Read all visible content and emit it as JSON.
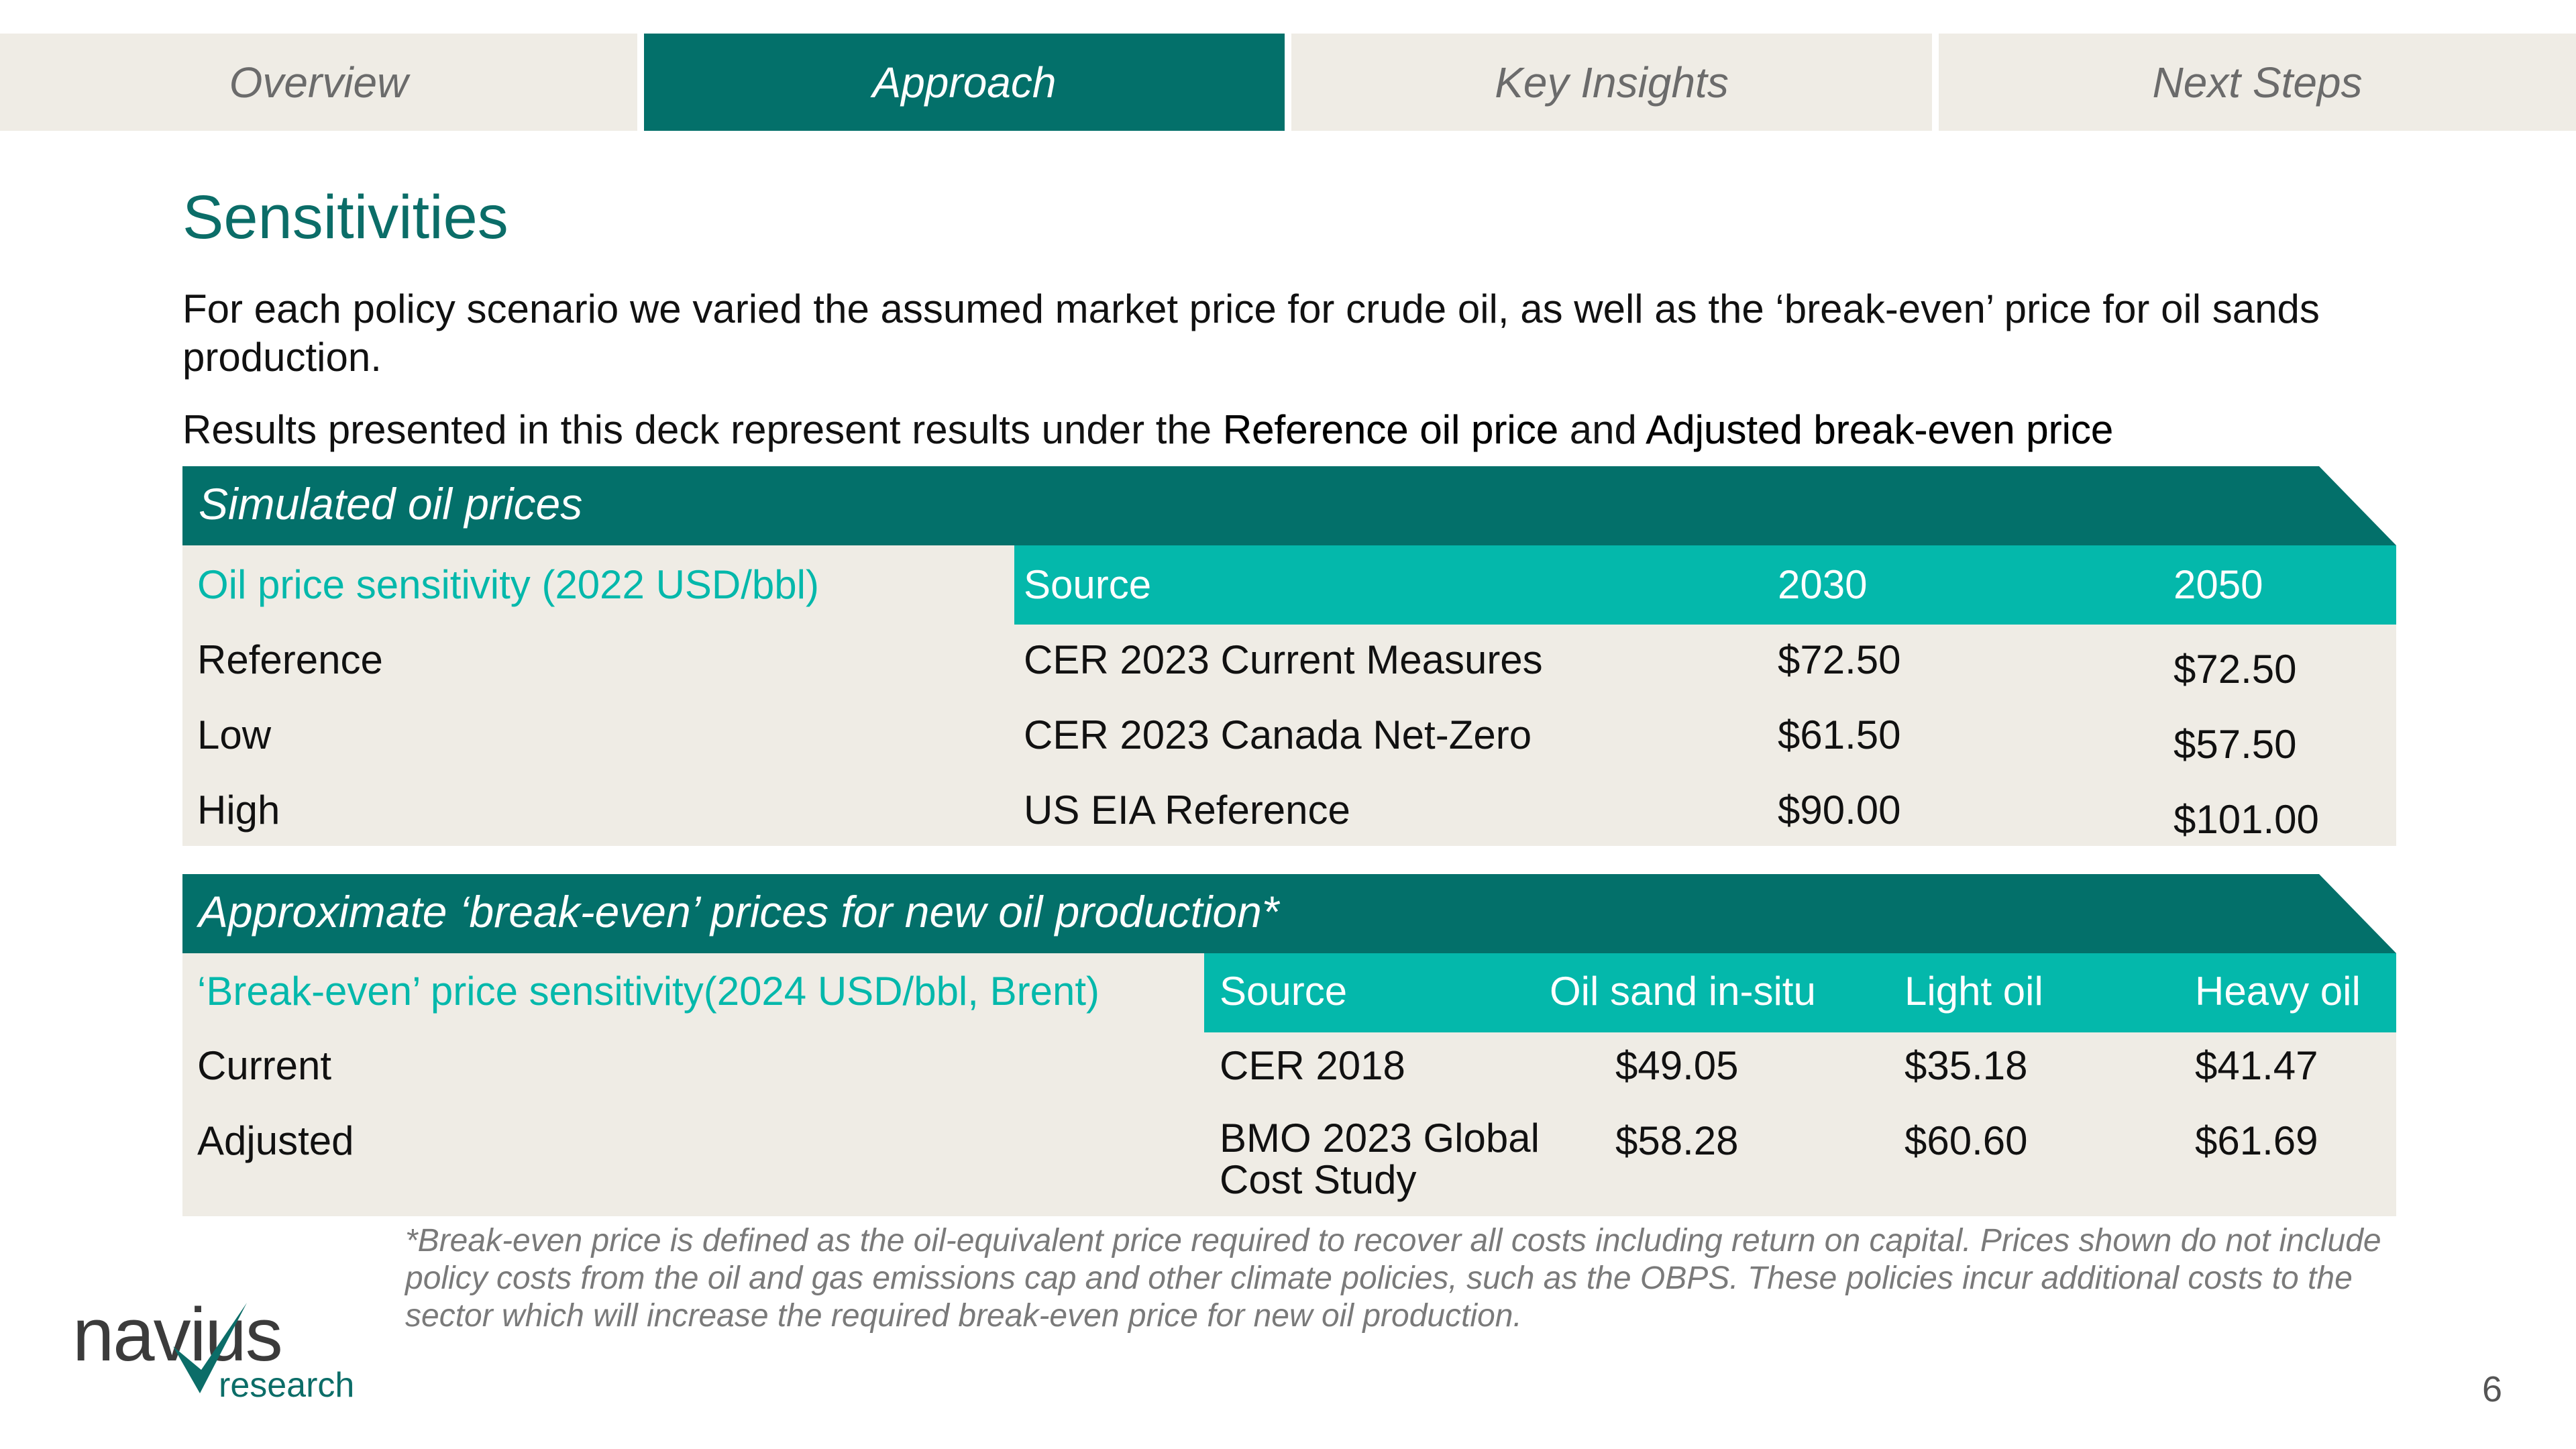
{
  "tabs": [
    {
      "label": "Overview",
      "active": false
    },
    {
      "label": "Approach",
      "active": true
    },
    {
      "label": "Key Insights",
      "active": false
    },
    {
      "label": "Next Steps",
      "active": false
    }
  ],
  "title": "Sensitivities",
  "intro": "For each policy scenario we varied the assumed market price for crude oil, as well as the ‘break-even’ price for oil sands production.",
  "results": {
    "prefix": "Results presented in this deck represent results under the ",
    "bold1": "Reference oil price",
    "mid": " and ",
    "bold2": "Adjusted break-even price"
  },
  "oil_prices": {
    "title": "Simulated oil prices",
    "columns": [
      "Oil price sensitivity (2022 USD/bbl)",
      "Source",
      "2030",
      "2050"
    ],
    "rows": [
      [
        "Reference",
        "CER 2023 Current Measures",
        "$72.50",
        "$72.50"
      ],
      [
        "Low",
        "CER 2023 Canada Net-Zero",
        "$61.50",
        "$57.50"
      ],
      [
        "High",
        "US EIA Reference",
        "$90.00",
        "$101.00"
      ]
    ]
  },
  "breakeven": {
    "title": "Approximate ‘break-even’ prices for new oil production*",
    "columns": [
      "‘Break-even’ price sensitivity(2024 USD/bbl, Brent)",
      "Source",
      "Oil sand in-situ",
      "Light oil",
      "Heavy oil"
    ],
    "rows": [
      [
        "Current",
        "CER 2018",
        "$49.05",
        "$35.18",
        "$41.47"
      ],
      [
        "Adjusted",
        "BMO 2023 Global Cost Study",
        "$58.28",
        "$60.60",
        "$61.69"
      ]
    ]
  },
  "footnote": "*Break-even price is defined as the oil-equivalent price required to recover all costs including return on capital. Prices shown do not include policy costs from the oil and gas emissions cap and other climate policies, such as the OBPS. These policies incur additional costs to the sector which will increase the required break-even price for new oil production.",
  "logo": {
    "wordmark": "navius",
    "sub": "research"
  },
  "page_number": "6",
  "colors": {
    "teal_dark": "#03706a",
    "teal_light": "#04b8ab",
    "beige": "#efece5"
  }
}
